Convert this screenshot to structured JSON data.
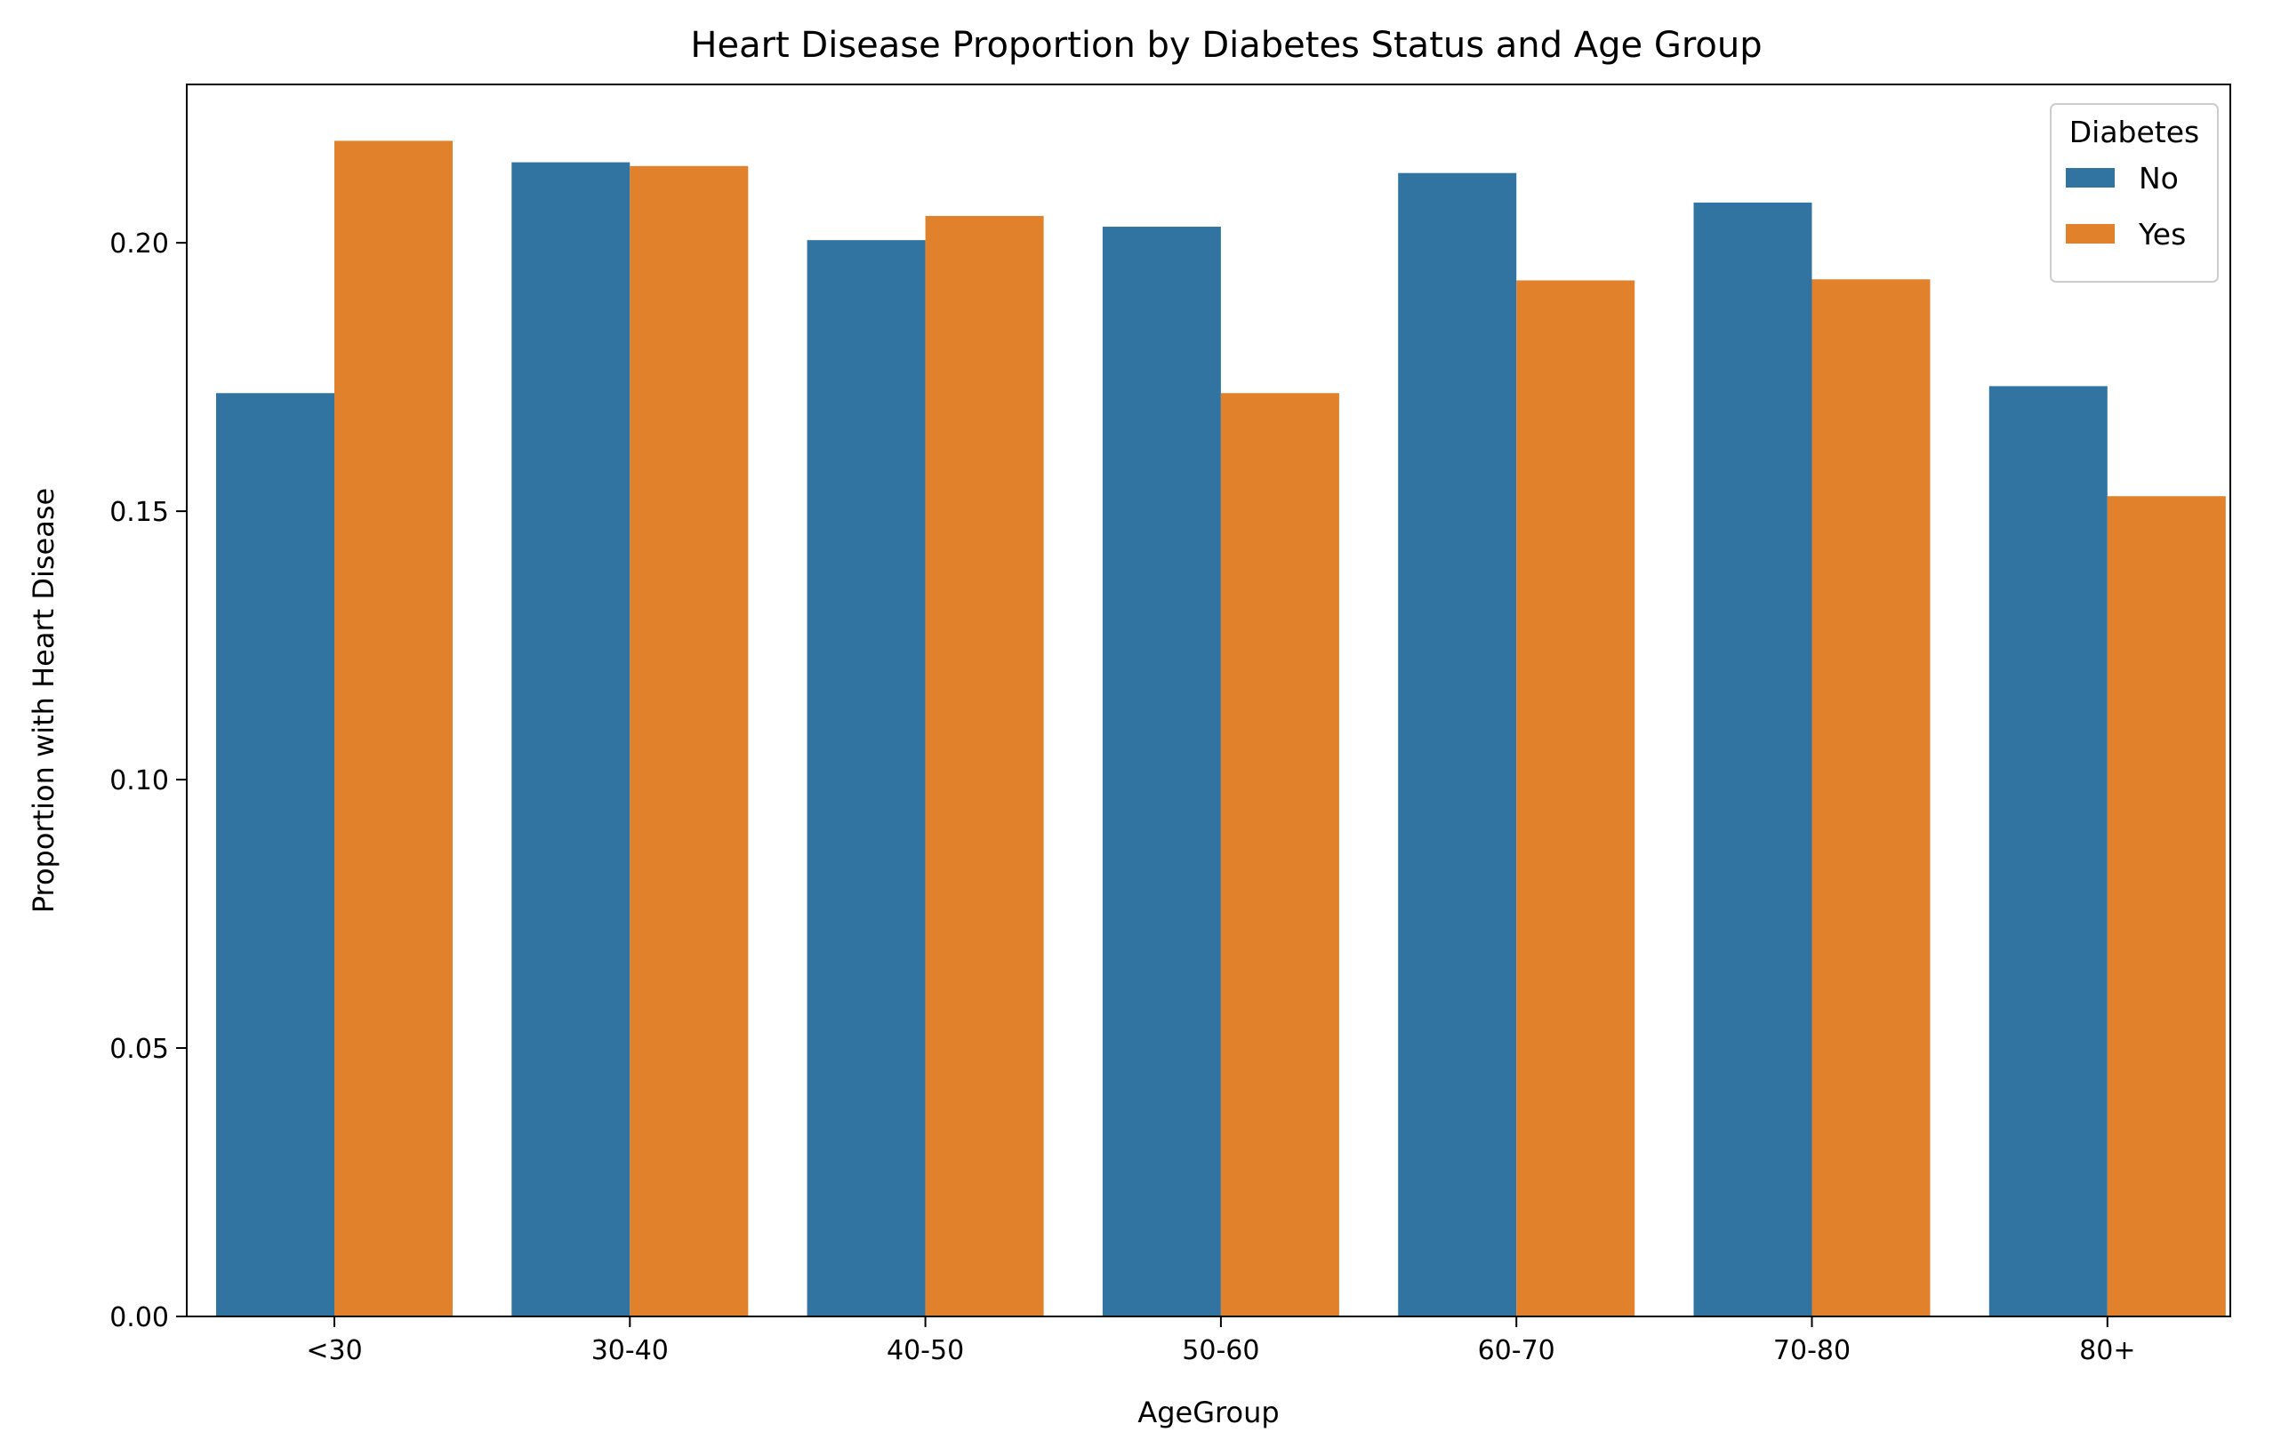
{
  "chart_data": {
    "type": "bar",
    "title": "Heart Disease Proportion by Diabetes Status and Age Group",
    "xlabel": "AgeGroup",
    "ylabel": "Proportion with Heart Disease",
    "categories": [
      "<30",
      "30-40",
      "40-50",
      "50-60",
      "60-70",
      "70-80",
      "80+"
    ],
    "series": [
      {
        "name": "No",
        "color": "#3274a1",
        "values": [
          0.172,
          0.215,
          0.2005,
          0.203,
          0.213,
          0.2075,
          0.1733
        ]
      },
      {
        "name": "Yes",
        "color": "#e1812c",
        "values": [
          0.219,
          0.2143,
          0.205,
          0.172,
          0.193,
          0.1932,
          0.1528
        ]
      }
    ],
    "ylim": [
      0,
      0.2295
    ],
    "yticks": [
      "0.00",
      "0.05",
      "0.10",
      "0.15",
      "0.20"
    ],
    "ytick_values": [
      0,
      0.05,
      0.1,
      0.15,
      0.2
    ],
    "legend": {
      "title": "Diabetes",
      "position": "top-right"
    },
    "grid": false
  }
}
